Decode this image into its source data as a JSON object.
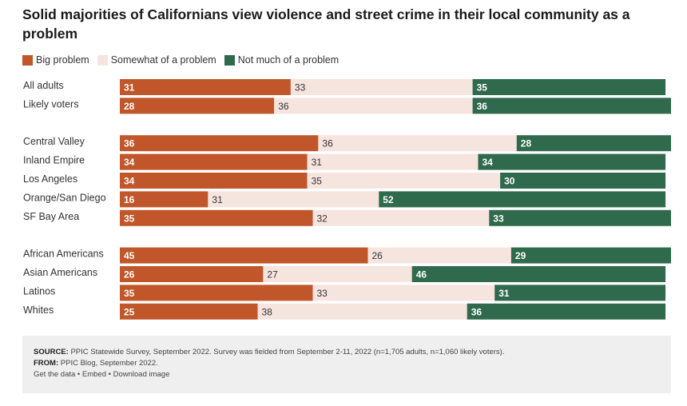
{
  "title": "Solid majorities of Californians view violence and street crime in their local community as a problem",
  "colors": {
    "big": "#c0562a",
    "somewhat": "#f6e4df",
    "not_much": "#2f6a4c"
  },
  "chart_data": {
    "type": "bar",
    "stacked": true,
    "orientation": "horizontal",
    "title": "Solid majorities of Californians view violence and street crime in their local community as a problem",
    "legend_position": "top-left",
    "grid": false,
    "xlim": [
      0,
      100
    ],
    "categories": [
      "All adults",
      "Likely voters",
      "Central Valley",
      "Inland Empire",
      "Los Angeles",
      "Orange/San Diego",
      "SF Bay Area",
      "African Americans",
      "Asian Americans",
      "Latinos",
      "Whites"
    ],
    "groups": [
      [
        "All adults",
        "Likely voters"
      ],
      [
        "Central Valley",
        "Inland Empire",
        "Los Angeles",
        "Orange/San Diego",
        "SF Bay Area"
      ],
      [
        "African Americans",
        "Asian Americans",
        "Latinos",
        "Whites"
      ]
    ],
    "series": [
      {
        "name": "Big problem",
        "values": [
          31,
          28,
          36,
          34,
          34,
          16,
          35,
          45,
          26,
          35,
          25
        ]
      },
      {
        "name": "Somewhat of a problem",
        "values": [
          33,
          36,
          36,
          31,
          35,
          31,
          32,
          26,
          27,
          33,
          38
        ]
      },
      {
        "name": "Not much of a problem",
        "values": [
          35,
          36,
          28,
          34,
          30,
          52,
          33,
          29,
          46,
          31,
          36
        ]
      }
    ]
  },
  "footer": {
    "source_label": "SOURCE:",
    "source_text": " PPIC Statewide Survey, September 2022. Survey was fielded from September 2-11, 2022 (n=1,705 adults, n=1,060 likely voters).",
    "from_label": "FROM:",
    "from_text": " PPIC Blog, September 2022.",
    "links": "Get the data • Embed • Download image"
  }
}
